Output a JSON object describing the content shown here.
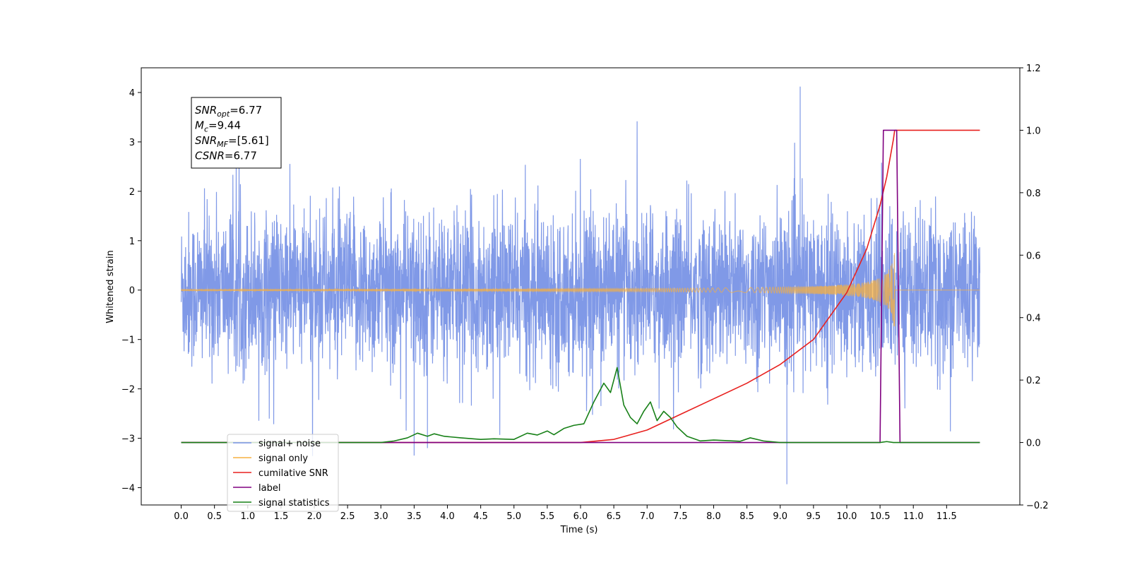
{
  "chart_data": {
    "type": "line",
    "xlabel": "Time (s)",
    "ylabel": "Whitened strain",
    "xlim": [
      -0.6,
      12.6
    ],
    "ylim": [
      -4.35,
      4.5
    ],
    "y2lim": [
      -0.2,
      1.2
    ],
    "x_ticks": [
      "0.0",
      "0.5",
      "1.0",
      "1.5",
      "2.0",
      "2.5",
      "3.0",
      "3.5",
      "4.0",
      "4.5",
      "5.0",
      "5.5",
      "6.0",
      "6.5",
      "7.0",
      "7.5",
      "8.0",
      "8.5",
      "9.0",
      "9.5",
      "10.0",
      "10.5",
      "11.0",
      "11.5"
    ],
    "y_ticks": [
      "4",
      "3",
      "2",
      "1",
      "0",
      "−1",
      "−2",
      "−3",
      "−4"
    ],
    "y2_ticks": [
      "1.2",
      "1.0",
      "0.8",
      "0.6",
      "0.4",
      "0.2",
      "0.0",
      "−0.2"
    ],
    "grid": false,
    "legend_position": "bottom-left",
    "stats_box": [
      {
        "name": "SNR",
        "sub": "opt",
        "value": "=6.77"
      },
      {
        "name": "M",
        "sub": "c",
        "value": "=9.44"
      },
      {
        "name": "SNR",
        "sub": "MF",
        "value": "=[5.61]"
      },
      {
        "name": "CSNR",
        "sub": "",
        "value": "=6.77"
      }
    ],
    "series": [
      {
        "name": "signal+ noise",
        "color": "#7994e6",
        "axis": "left",
        "kind": "noise",
        "x_range": [
          0,
          12.0
        ],
        "amplitude_typical": 1.3,
        "peak_max": 4.12,
        "peak_min": -3.93
      },
      {
        "name": "signal only",
        "color": "#f5b041",
        "axis": "left",
        "kind": "chirp",
        "x_range": [
          0,
          12.0
        ],
        "merger_time": 10.72,
        "max_amplitude": 0.9
      },
      {
        "name": "cumilative SNR",
        "color": "#e8201e",
        "axis": "right",
        "x": [
          0,
          6.0,
          6.5,
          7.0,
          7.5,
          8.0,
          8.5,
          9.0,
          9.5,
          10.0,
          10.3,
          10.5,
          10.6,
          10.7,
          10.72,
          12.0
        ],
        "values": [
          0.0,
          0.0,
          0.01,
          0.04,
          0.09,
          0.14,
          0.19,
          0.25,
          0.33,
          0.48,
          0.62,
          0.76,
          0.85,
          0.97,
          1.0,
          1.0
        ]
      },
      {
        "name": "label",
        "color": "#800080",
        "axis": "right",
        "x": [
          0,
          10.5,
          10.55,
          10.75,
          10.8,
          12.0
        ],
        "values": [
          0.0,
          0.0,
          1.0,
          1.0,
          0.0,
          0.0
        ]
      },
      {
        "name": "signal statistics",
        "color": "#178017",
        "axis": "right",
        "x": [
          0,
          2.5,
          3.0,
          3.2,
          3.4,
          3.55,
          3.7,
          3.8,
          3.95,
          4.05,
          4.2,
          4.5,
          4.7,
          5.0,
          5.2,
          5.35,
          5.5,
          5.6,
          5.75,
          5.9,
          6.05,
          6.2,
          6.35,
          6.45,
          6.55,
          6.65,
          6.75,
          6.85,
          6.95,
          7.05,
          7.15,
          7.25,
          7.35,
          7.45,
          7.6,
          7.8,
          8.0,
          8.2,
          8.4,
          8.55,
          8.75,
          9.0,
          10.5,
          10.6,
          10.7,
          12.0
        ],
        "values": [
          0.0,
          0.0,
          0.0,
          0.005,
          0.015,
          0.03,
          0.02,
          0.028,
          0.02,
          0.018,
          0.015,
          0.01,
          0.012,
          0.01,
          0.03,
          0.024,
          0.037,
          0.025,
          0.045,
          0.055,
          0.06,
          0.13,
          0.19,
          0.16,
          0.24,
          0.12,
          0.08,
          0.06,
          0.1,
          0.13,
          0.07,
          0.1,
          0.08,
          0.05,
          0.02,
          0.005,
          0.008,
          0.006,
          0.004,
          0.015,
          0.005,
          0.0,
          0.0,
          0.003,
          0.0,
          0.0
        ]
      }
    ],
    "legend": [
      {
        "label": "signal+ noise",
        "color": "#7994e6"
      },
      {
        "label": "signal only",
        "color": "#f5b041"
      },
      {
        "label": "cumilative SNR",
        "color": "#e8201e"
      },
      {
        "label": "label",
        "color": "#800080"
      },
      {
        "label": "signal statistics",
        "color": "#178017"
      }
    ]
  }
}
